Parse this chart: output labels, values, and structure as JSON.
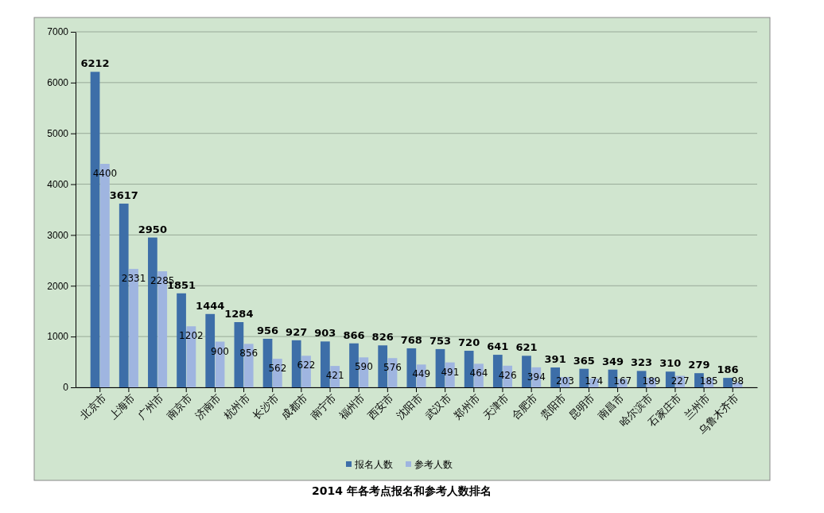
{
  "chart_data": {
    "type": "bar",
    "title": "2014 年各考点报名和参考人数排名",
    "categories": [
      "北京市",
      "上海市",
      "广州市",
      "南京市",
      "济南市",
      "杭州市",
      "长沙市",
      "成都市",
      "南宁市",
      "福州市",
      "西安市",
      "沈阳市",
      "武汉市",
      "郑州市",
      "天津市",
      "合肥市",
      "贵阳市",
      "昆明市",
      "南昌市",
      "哈尔滨市",
      "石家庄市",
      "兰州市",
      "乌鲁木齐市"
    ],
    "series": [
      {
        "name": "报名人数",
        "color": "#3d6ea8",
        "values": [
          6212,
          3617,
          2950,
          1851,
          1444,
          1284,
          956,
          927,
          903,
          866,
          826,
          768,
          753,
          720,
          641,
          621,
          391,
          365,
          349,
          323,
          310,
          279,
          186
        ]
      },
      {
        "name": "参考人数",
        "color": "#9fb5e0",
        "values": [
          4400,
          2331,
          2285,
          1202,
          900,
          856,
          562,
          622,
          421,
          590,
          576,
          449,
          491,
          464,
          426,
          394,
          203,
          174,
          167,
          189,
          227,
          185,
          98
        ]
      }
    ],
    "ylim": [
      0,
      7000
    ],
    "yticks": [
      0,
      1000,
      2000,
      3000,
      4000,
      5000,
      6000,
      7000
    ],
    "grid": "y",
    "legend": "bottom",
    "data_labels": true
  }
}
